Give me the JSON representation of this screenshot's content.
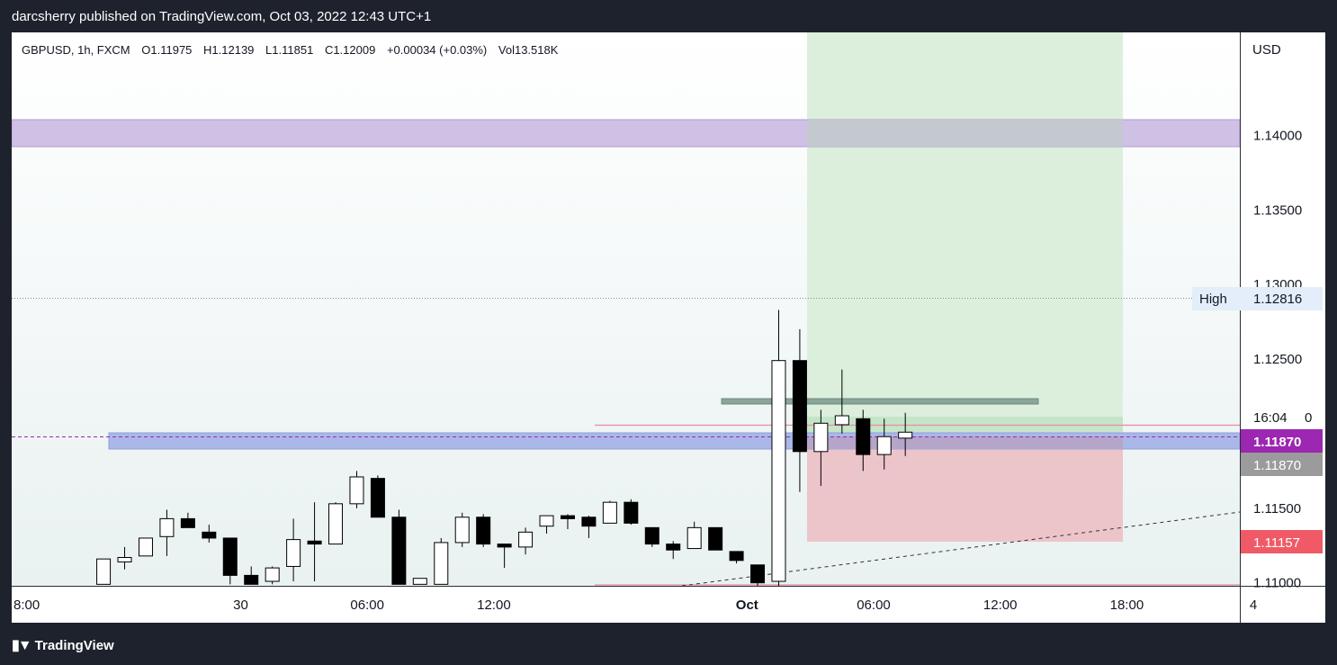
{
  "header": {
    "publisher": "darcsherry published on TradingView.com, Oct 03, 2022 12:43 UTC+1"
  },
  "legend": {
    "symbol": "GBPUSD, 1h, FXCM",
    "open": "O1.11975",
    "high": "H1.12139",
    "low": "L1.11851",
    "close": "C1.12009",
    "change": "+0.00034 (+0.03%)",
    "volume": "Vol13.518K"
  },
  "price_axis": {
    "currency": "USD",
    "ticks": [
      "1.14000",
      "1.13500",
      "1.13000",
      "1.12500",
      "1.11500",
      "1.11000"
    ],
    "high_label": "High",
    "high_value": "1.12816",
    "countdown": "16:04",
    "countdown_suffix": "0",
    "last_price": "1.11870",
    "prev_close": "1.11870",
    "stop_price": "1.11157"
  },
  "time_axis": {
    "ticks": [
      "8:00",
      "30",
      "06:00",
      "12:00",
      "Oct",
      "06:00",
      "12:00",
      "18:00",
      "4"
    ]
  },
  "footer": {
    "brand": "TradingView",
    "logo_icon": "tradingview-logo-icon"
  },
  "colors": {
    "bull_body": "#ffffff",
    "bear_body": "#000000",
    "target_zone": "#dcefdd",
    "stop_zone": "#ecc5cb",
    "purple_zone": "#cfc0e6",
    "blue_zone": "#a9b8e8",
    "last_price_bg": "#9c27b0",
    "prev_close_bg": "#9b9b9b",
    "stop_bg": "#f05a67"
  },
  "chart_data": {
    "type": "candlestick",
    "symbol": "GBPUSD",
    "interval": "1h",
    "ylim": [
      1.1098,
      1.1469
    ],
    "x_ticks": [
      {
        "label": "8:00",
        "x": 0
      },
      {
        "label": "30",
        "x": 10
      },
      {
        "label": "06:00",
        "x": 16
      },
      {
        "label": "12:00",
        "x": 22
      },
      {
        "label": "Oct",
        "x": 34
      },
      {
        "label": "06:00",
        "x": 40
      },
      {
        "label": "12:00",
        "x": 46
      },
      {
        "label": "18:00",
        "x": 52
      },
      {
        "label": "4",
        "x": 58
      }
    ],
    "candles": [
      {
        "x": 3.5,
        "o": 1.1099,
        "h": 1.1116,
        "l": 1.1099,
        "c": 1.1116
      },
      {
        "x": 4.5,
        "o": 1.1114,
        "h": 1.1124,
        "l": 1.1109,
        "c": 1.1117
      },
      {
        "x": 5.5,
        "o": 1.1118,
        "h": 1.113,
        "l": 1.1118,
        "c": 1.113
      },
      {
        "x": 6.5,
        "o": 1.1131,
        "h": 1.1149,
        "l": 1.1118,
        "c": 1.1143
      },
      {
        "x": 7.5,
        "o": 1.1143,
        "h": 1.1147,
        "l": 1.1137,
        "c": 1.1137
      },
      {
        "x": 8.5,
        "o": 1.1134,
        "h": 1.1139,
        "l": 1.1127,
        "c": 1.113
      },
      {
        "x": 9.5,
        "o": 1.113,
        "h": 1.113,
        "l": 1.1099,
        "c": 1.1105
      },
      {
        "x": 10.5,
        "o": 1.1105,
        "h": 1.1111,
        "l": 1.1099,
        "c": 1.1099
      },
      {
        "x": 11.5,
        "o": 1.1101,
        "h": 1.1111,
        "l": 1.1099,
        "c": 1.111
      },
      {
        "x": 12.5,
        "o": 1.1111,
        "h": 1.1143,
        "l": 1.1101,
        "c": 1.1129
      },
      {
        "x": 13.5,
        "o": 1.1128,
        "h": 1.1154,
        "l": 1.1101,
        "c": 1.1126
      },
      {
        "x": 14.5,
        "o": 1.1126,
        "h": 1.1154,
        "l": 1.1126,
        "c": 1.1153
      },
      {
        "x": 15.5,
        "o": 1.1153,
        "h": 1.1175,
        "l": 1.115,
        "c": 1.1171
      },
      {
        "x": 16.5,
        "o": 1.117,
        "h": 1.1172,
        "l": 1.1144,
        "c": 1.1144
      },
      {
        "x": 17.5,
        "o": 1.1144,
        "h": 1.1149,
        "l": 1.1099,
        "c": 1.1099
      },
      {
        "x": 18.5,
        "o": 1.1099,
        "h": 1.1103,
        "l": 1.1099,
        "c": 1.1103
      },
      {
        "x": 19.5,
        "o": 1.1099,
        "h": 1.113,
        "l": 1.1099,
        "c": 1.1127
      },
      {
        "x": 20.5,
        "o": 1.1127,
        "h": 1.1147,
        "l": 1.1124,
        "c": 1.1144
      },
      {
        "x": 21.5,
        "o": 1.1144,
        "h": 1.1146,
        "l": 1.1124,
        "c": 1.1126
      },
      {
        "x": 22.5,
        "o": 1.1126,
        "h": 1.1126,
        "l": 1.111,
        "c": 1.1124
      },
      {
        "x": 23.5,
        "o": 1.1124,
        "h": 1.1137,
        "l": 1.1119,
        "c": 1.1134
      },
      {
        "x": 24.5,
        "o": 1.1138,
        "h": 1.1145,
        "l": 1.1133,
        "c": 1.1145
      },
      {
        "x": 25.5,
        "o": 1.1145,
        "h": 1.1146,
        "l": 1.1136,
        "c": 1.1143
      },
      {
        "x": 26.5,
        "o": 1.1144,
        "h": 1.1145,
        "l": 1.113,
        "c": 1.1138
      },
      {
        "x": 27.5,
        "o": 1.114,
        "h": 1.1155,
        "l": 1.114,
        "c": 1.1154
      },
      {
        "x": 28.5,
        "o": 1.1154,
        "h": 1.1156,
        "l": 1.1139,
        "c": 1.114
      },
      {
        "x": 29.5,
        "o": 1.1137,
        "h": 1.1137,
        "l": 1.1124,
        "c": 1.1126
      },
      {
        "x": 30.5,
        "o": 1.1126,
        "h": 1.1128,
        "l": 1.1116,
        "c": 1.1122
      },
      {
        "x": 31.5,
        "o": 1.1123,
        "h": 1.1141,
        "l": 1.1123,
        "c": 1.1137
      },
      {
        "x": 32.5,
        "o": 1.1137,
        "h": 1.1137,
        "l": 1.1122,
        "c": 1.1122
      },
      {
        "x": 33.5,
        "o": 1.1121,
        "h": 1.1121,
        "l": 1.1113,
        "c": 1.1115
      },
      {
        "x": 34.5,
        "o": 1.1112,
        "h": 1.1112,
        "l": 1.1095,
        "c": 1.11
      },
      {
        "x": 35.5,
        "o": 1.1101,
        "h": 1.1283,
        "l": 1.1097,
        "c": 1.1249
      },
      {
        "x": 36.5,
        "o": 1.1249,
        "h": 1.127,
        "l": 1.1161,
        "c": 1.1188
      },
      {
        "x": 37.5,
        "o": 1.1188,
        "h": 1.1216,
        "l": 1.1165,
        "c": 1.1207
      },
      {
        "x": 38.5,
        "o": 1.1206,
        "h": 1.1243,
        "l": 1.12,
        "c": 1.1212
      },
      {
        "x": 39.5,
        "o": 1.121,
        "h": 1.1216,
        "l": 1.1175,
        "c": 1.1186
      },
      {
        "x": 40.5,
        "o": 1.1186,
        "h": 1.121,
        "l": 1.1176,
        "c": 1.1198
      },
      {
        "x": 41.5,
        "o": 1.1197,
        "h": 1.1214,
        "l": 1.1185,
        "c": 1.1201
      }
    ]
  }
}
